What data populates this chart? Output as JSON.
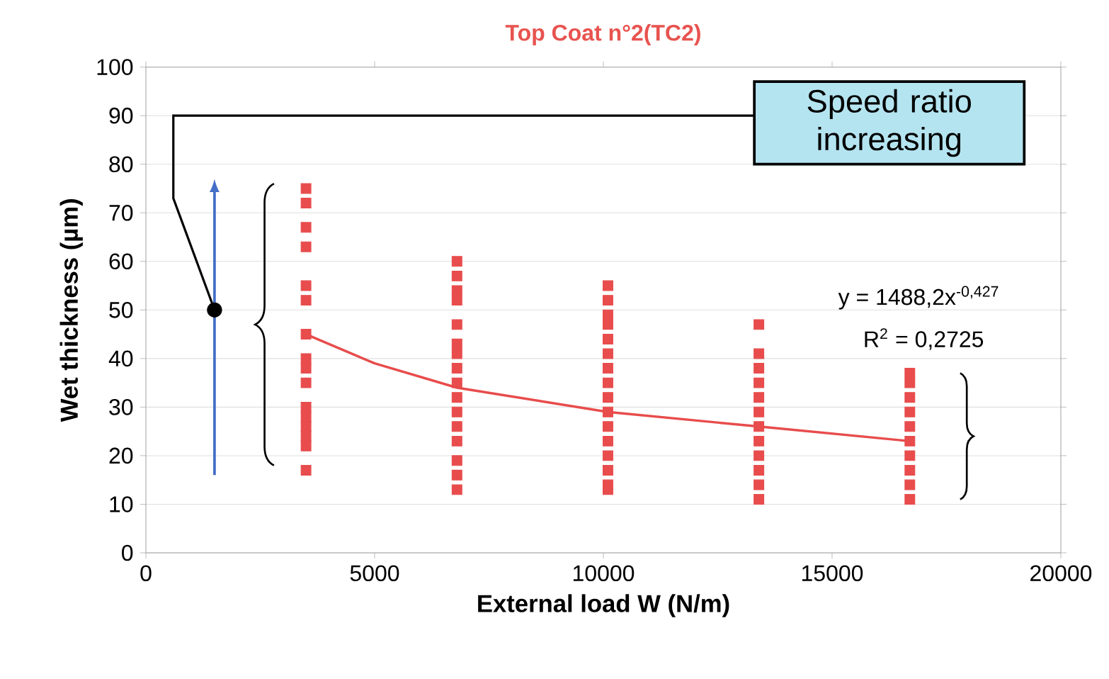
{
  "chart_data": {
    "type": "scatter",
    "title": "Top Coat n°2(TC2)",
    "xlabel": "External load W (N/m)",
    "ylabel": "Wet thickness (µm)",
    "xlim": [
      0,
      20000
    ],
    "ylim": [
      0,
      100
    ],
    "xticks": [
      0,
      5000,
      10000,
      15000,
      20000
    ],
    "yticks": [
      0,
      10,
      20,
      30,
      40,
      50,
      60,
      70,
      80,
      90,
      100
    ],
    "grid": "y",
    "annotations": [
      "Speed ratio increasing",
      "y = 1488,2x$^{-0,427}$",
      "R$^{2}$ = 0,2725"
    ],
    "series": [
      {
        "type": "scatter",
        "marker": "square",
        "color": "#e84c4c",
        "x": [
          3500,
          3500,
          3500,
          3500,
          3500,
          3500,
          3500,
          3500,
          3500,
          3500,
          3500,
          3500,
          3500,
          3500,
          3500,
          3500,
          6800,
          6800,
          6800,
          6800,
          6800,
          6800,
          6800,
          6800,
          6800,
          6800,
          6800,
          6800,
          6800,
          6800,
          6800,
          6800,
          10100,
          10100,
          10100,
          10100,
          10100,
          10100,
          10100,
          10100,
          10100,
          10100,
          10100,
          10100,
          10100,
          10100,
          10100,
          10100,
          13400,
          13400,
          13400,
          13400,
          13400,
          13400,
          13400,
          13400,
          13400,
          13400,
          13400,
          13400,
          16700,
          16700,
          16700,
          16700,
          16700,
          16700,
          16700,
          16700,
          16700,
          16700
        ],
        "values": [
          75,
          72,
          67,
          63,
          55,
          52,
          45,
          40,
          38,
          35,
          30,
          28,
          26,
          24,
          22,
          17,
          60,
          57,
          54,
          52,
          47,
          43,
          41,
          38,
          35,
          32,
          29,
          26,
          23,
          19,
          16,
          13,
          55,
          52,
          49,
          47,
          44,
          41,
          38,
          35,
          32,
          29,
          26,
          23,
          20,
          17,
          14,
          13,
          47,
          41,
          38,
          35,
          32,
          29,
          26,
          23,
          20,
          17,
          14,
          11,
          37,
          35,
          32,
          29,
          26,
          23,
          20,
          17,
          14,
          11
        ]
      },
      {
        "type": "line",
        "color": "#e84c4c",
        "x": [
          3500,
          5000,
          6800,
          10100,
          13400,
          16700
        ],
        "values": [
          45,
          39,
          34,
          29,
          26,
          23
        ]
      }
    ]
  }
}
